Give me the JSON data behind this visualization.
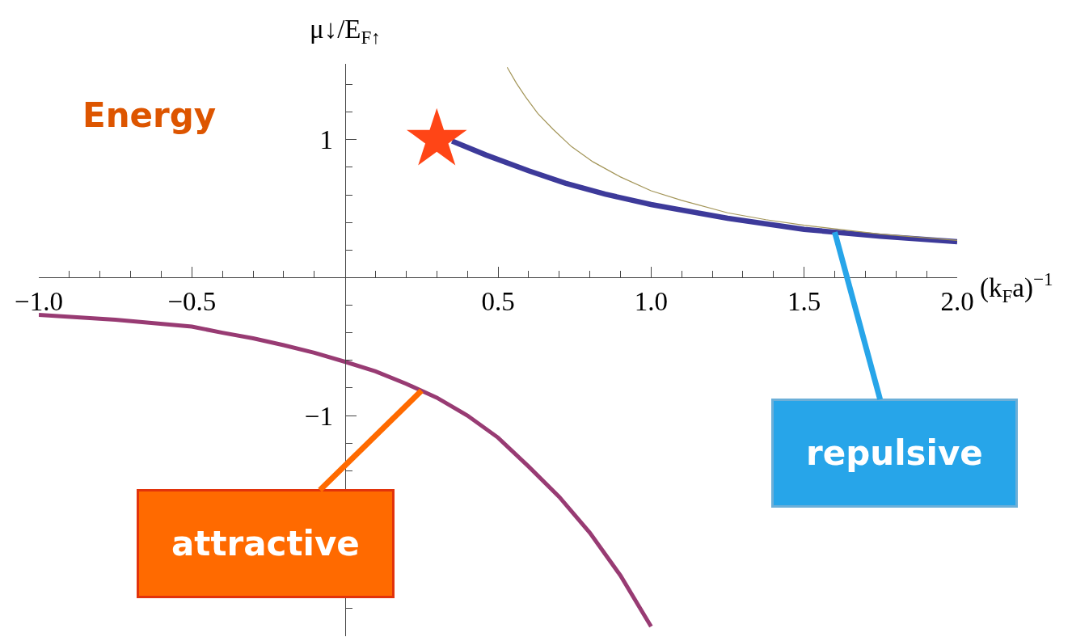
{
  "chart_data": {
    "type": "line",
    "xlabel": "(k$_{F}$a)$^{−1}$",
    "ylabel": "μ↓/E$_{F↑}$",
    "xlim": [
      -1.0,
      2.0
    ],
    "ylim": [
      -2.6,
      1.55
    ],
    "xticks": [
      {
        "value": -1.0,
        "label": "−1.0"
      },
      {
        "value": -0.9,
        "label": null
      },
      {
        "value": -0.8,
        "label": null
      },
      {
        "value": -0.7,
        "label": null
      },
      {
        "value": -0.6,
        "label": null
      },
      {
        "value": -0.5,
        "label": "−0.5"
      },
      {
        "value": -0.4,
        "label": null
      },
      {
        "value": -0.3,
        "label": null
      },
      {
        "value": -0.2,
        "label": null
      },
      {
        "value": -0.1,
        "label": null
      },
      {
        "value": 0.1,
        "label": null
      },
      {
        "value": 0.2,
        "label": null
      },
      {
        "value": 0.3,
        "label": null
      },
      {
        "value": 0.4,
        "label": null
      },
      {
        "value": 0.5,
        "label": "0.5"
      },
      {
        "value": 0.6,
        "label": null
      },
      {
        "value": 0.7,
        "label": null
      },
      {
        "value": 0.8,
        "label": null
      },
      {
        "value": 0.9,
        "label": null
      },
      {
        "value": 1.0,
        "label": "1.0"
      },
      {
        "value": 1.1,
        "label": null
      },
      {
        "value": 1.2,
        "label": null
      },
      {
        "value": 1.3,
        "label": null
      },
      {
        "value": 1.4,
        "label": null
      },
      {
        "value": 1.5,
        "label": "1.5"
      },
      {
        "value": 1.6,
        "label": null
      },
      {
        "value": 1.7,
        "label": null
      },
      {
        "value": 1.8,
        "label": null
      },
      {
        "value": 1.9,
        "label": null
      },
      {
        "value": 2.0,
        "label": "2.0"
      }
    ],
    "yticks": [
      {
        "value": -2.4,
        "label": null
      },
      {
        "value": -2.2,
        "label": null
      },
      {
        "value": -2.0,
        "label": null
      },
      {
        "value": -1.8,
        "label": null
      },
      {
        "value": -1.6,
        "label": null
      },
      {
        "value": -1.4,
        "label": null
      },
      {
        "value": -1.2,
        "label": null
      },
      {
        "value": -1,
        "label": "−1"
      },
      {
        "value": -0.8,
        "label": null
      },
      {
        "value": -0.6,
        "label": null
      },
      {
        "value": -0.4,
        "label": null
      },
      {
        "value": -0.2,
        "label": null
      },
      {
        "value": 0.2,
        "label": null
      },
      {
        "value": 0.4,
        "label": null
      },
      {
        "value": 0.6,
        "label": null
      },
      {
        "value": 0.8,
        "label": null
      },
      {
        "value": 1,
        "label": "1"
      },
      {
        "value": 1.2,
        "label": null
      },
      {
        "value": 1.4,
        "label": null
      }
    ],
    "annotations": [
      "Energy",
      {
        "text": "attractive",
        "x": 0.25,
        "y": -0.82
      },
      {
        "text": "repulsive",
        "x": 1.6,
        "y": 0.33
      }
    ],
    "series": [
      {
        "color": "#983b73",
        "x": [
          -1.0,
          -0.75,
          -0.5,
          -0.4,
          -0.3,
          -0.2,
          -0.1,
          0.0,
          0.1,
          0.2,
          0.3,
          0.4,
          0.5,
          0.6,
          0.7,
          0.8,
          0.9,
          1.0
        ],
        "values": [
          -0.27,
          -0.305,
          -0.355,
          -0.4,
          -0.44,
          -0.49,
          -0.545,
          -0.61,
          -0.68,
          -0.77,
          -0.87,
          -1.0,
          -1.16,
          -1.37,
          -1.59,
          -1.85,
          -2.16,
          -2.53
        ]
      },
      {
        "color": "#3d3a9a",
        "x": [
          0.35,
          0.46,
          0.6,
          0.72,
          0.85,
          1.0,
          1.25,
          1.5,
          1.75,
          2.0
        ],
        "values": [
          0.99,
          0.89,
          0.775,
          0.685,
          0.605,
          0.53,
          0.43,
          0.35,
          0.3,
          0.26
        ]
      },
      {
        "color": "#a39558",
        "x": [
          0.53,
          0.56,
          0.59,
          0.63,
          0.68,
          0.74,
          0.81,
          0.9,
          1.0,
          1.1,
          1.25,
          1.375,
          1.5,
          1.75,
          2.0
        ],
        "values": [
          1.525,
          1.41,
          1.31,
          1.19,
          1.075,
          0.95,
          0.84,
          0.73,
          0.63,
          0.56,
          0.47,
          0.42,
          0.38,
          0.315,
          0.27
        ]
      },
      {
        "type": "scatter",
        "marker": "star",
        "color": "#ff4516",
        "x": [
          0.3
        ],
        "values": [
          1.0
        ]
      }
    ]
  }
}
